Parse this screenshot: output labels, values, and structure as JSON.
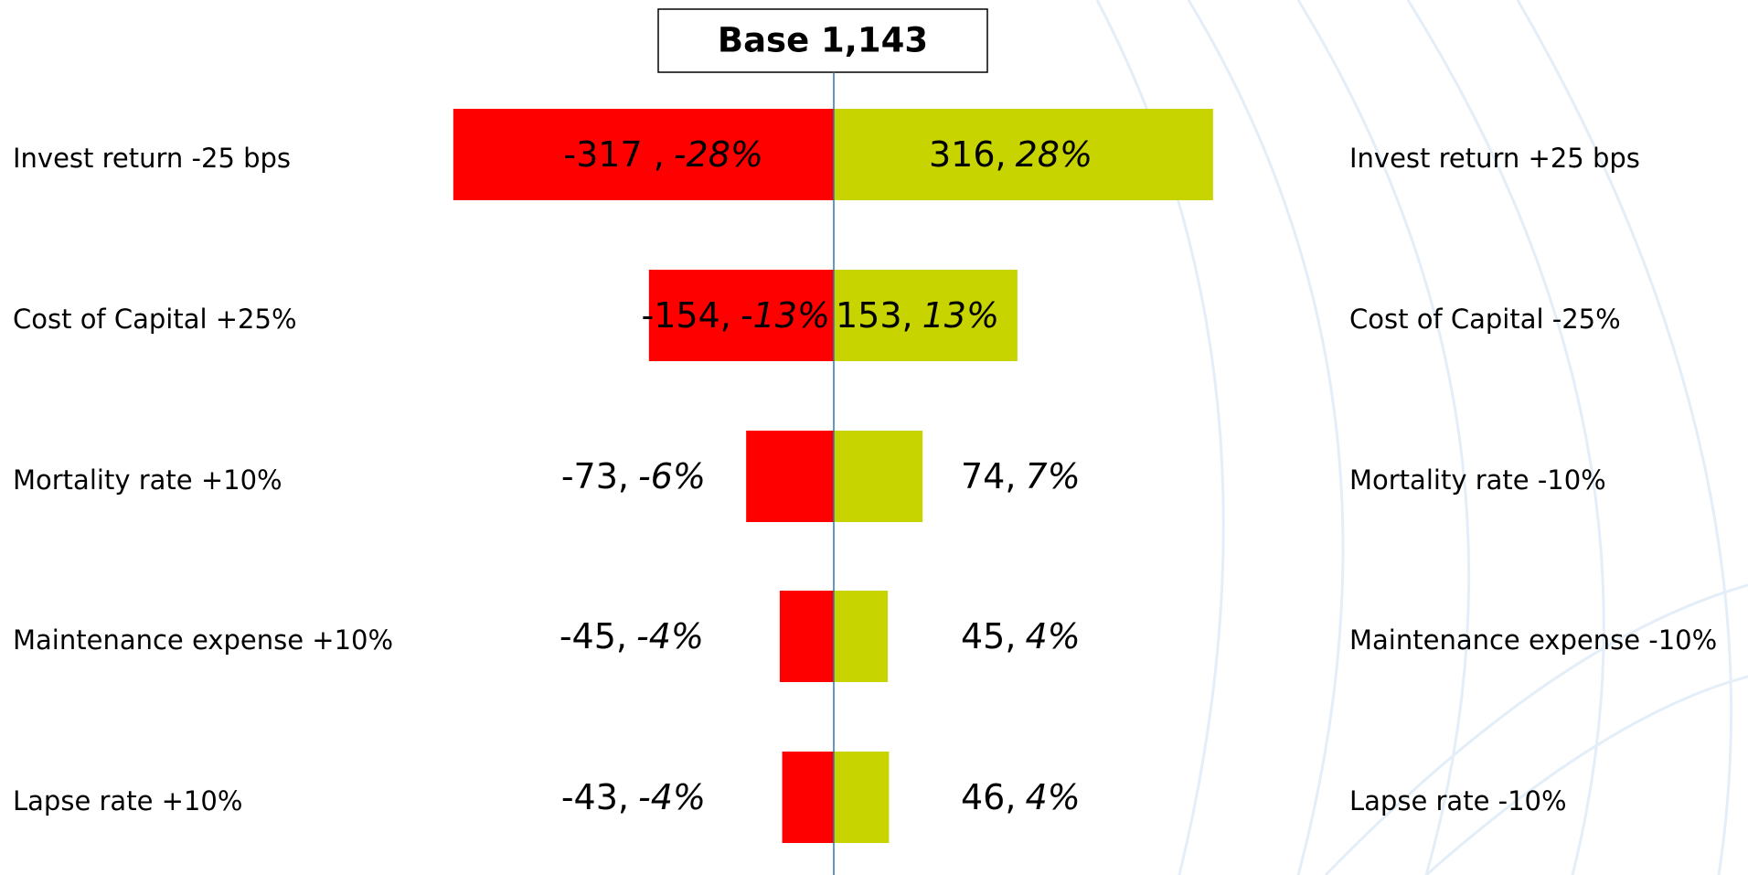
{
  "chart_data": {
    "type": "tornado",
    "title": "Base 1,143",
    "categories": [
      "Invest return -25 bps",
      "Cost of Capital +25%",
      "Mortality rate +10%",
      "Maintenance expense +10%",
      "Lapse rate +10%"
    ],
    "categories_right": [
      "Invest return +25 bps",
      "Cost of Capital -25%",
      "Mortality rate -10%",
      "Maintenance expense -10%",
      "Lapse rate -10%"
    ],
    "series": [
      {
        "color": "#ff0000",
        "values": [
          -317,
          -154,
          -73,
          -45,
          -43
        ],
        "value_labels": [
          "-317 ,",
          "-154,",
          "-73,",
          "-45,",
          "-43,"
        ],
        "pct_labels": [
          "-28%",
          "-13%",
          "-6%",
          "-4%",
          "-4%"
        ]
      },
      {
        "color": "#c8d400",
        "values": [
          316,
          153,
          74,
          45,
          46
        ],
        "value_labels": [
          "316,",
          "153,",
          "74,",
          "45,",
          "46,"
        ],
        "pct_labels": [
          "28%",
          "13%",
          "7%",
          "4%",
          "4%"
        ]
      }
    ],
    "xlim": [
      -700,
      700
    ]
  }
}
